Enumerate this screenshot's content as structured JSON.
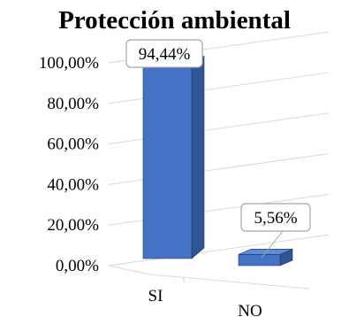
{
  "chart_data": {
    "type": "bar",
    "title": "Protección ambiental",
    "categories": [
      "SI",
      "NO"
    ],
    "values": [
      94.44,
      5.56
    ],
    "value_labels": [
      "94,44%",
      "5,56%"
    ],
    "y_ticks": [
      "0,00%",
      "20,00%",
      "40,00%",
      "60,00%",
      "80,00%",
      "100,00%"
    ],
    "ylim": [
      0,
      100
    ],
    "grid": true,
    "legend": "none",
    "colors": {
      "front": "#4472C4",
      "side": "#2F5597",
      "top": "#5B8BD9",
      "outline": "#1F3864"
    }
  }
}
